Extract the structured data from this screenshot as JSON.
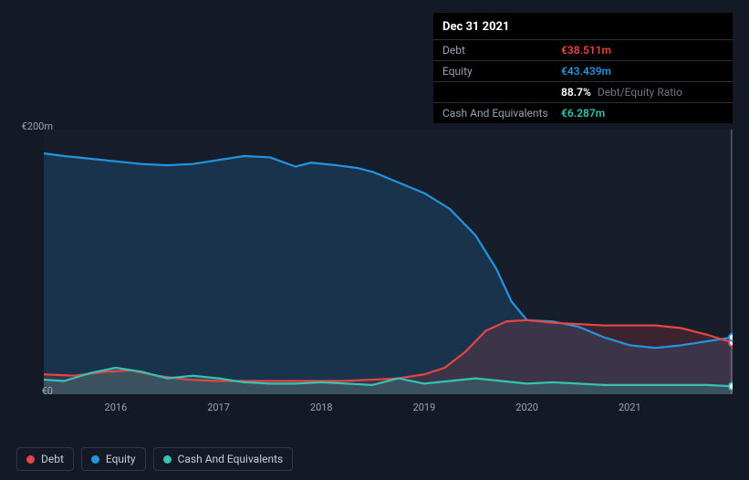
{
  "tooltip": {
    "date": "Dec 31 2021",
    "rows": [
      {
        "label": "Debt",
        "value": "€38.511m",
        "color": "#e64545"
      },
      {
        "label": "Equity",
        "value": "€43.439m",
        "color": "#2394df"
      },
      {
        "label": "",
        "value": "88.7%",
        "suffix": "Debt/Equity Ratio",
        "color": "#ffffff"
      },
      {
        "label": "Cash And Equivalents",
        "value": "€6.287m",
        "color": "#35c4b3"
      }
    ]
  },
  "chart": {
    "type": "area-line",
    "background": "#171e2b",
    "page_background": "#131a25",
    "ylim": [
      0,
      200
    ],
    "y_ticks": [
      {
        "v": 200,
        "label": "€200m"
      },
      {
        "v": 0,
        "label": "€0"
      }
    ],
    "x_range": [
      2015.3,
      2022.0
    ],
    "x_ticks": [
      2016,
      2017,
      2018,
      2019,
      2020,
      2021
    ],
    "hover_x": 2021.99,
    "series": {
      "equity": {
        "label": "Equity",
        "color": "#2394df",
        "fill": "rgba(35,148,223,0.18)",
        "line_width": 2.2,
        "points": [
          [
            2015.3,
            182
          ],
          [
            2015.5,
            180
          ],
          [
            2015.75,
            178
          ],
          [
            2016.0,
            176
          ],
          [
            2016.25,
            174
          ],
          [
            2016.5,
            173
          ],
          [
            2016.75,
            174
          ],
          [
            2017.0,
            177
          ],
          [
            2017.25,
            180
          ],
          [
            2017.5,
            179
          ],
          [
            2017.75,
            172
          ],
          [
            2017.9,
            175
          ],
          [
            2018.15,
            173
          ],
          [
            2018.35,
            171
          ],
          [
            2018.5,
            168
          ],
          [
            2018.75,
            160
          ],
          [
            2019.0,
            152
          ],
          [
            2019.25,
            140
          ],
          [
            2019.5,
            120
          ],
          [
            2019.7,
            95
          ],
          [
            2019.85,
            70
          ],
          [
            2020.0,
            56
          ],
          [
            2020.25,
            55
          ],
          [
            2020.5,
            51
          ],
          [
            2020.75,
            43
          ],
          [
            2021.0,
            37
          ],
          [
            2021.25,
            35
          ],
          [
            2021.5,
            37
          ],
          [
            2021.75,
            40
          ],
          [
            2022.0,
            43
          ]
        ]
      },
      "debt": {
        "label": "Debt",
        "color": "#e64545",
        "fill": "rgba(230,69,69,0.18)",
        "line_width": 2.2,
        "points": [
          [
            2015.3,
            15
          ],
          [
            2015.6,
            14
          ],
          [
            2015.9,
            17
          ],
          [
            2016.15,
            18
          ],
          [
            2016.4,
            14
          ],
          [
            2016.7,
            11
          ],
          [
            2017.0,
            10
          ],
          [
            2017.3,
            10
          ],
          [
            2017.6,
            10
          ],
          [
            2017.9,
            10
          ],
          [
            2018.2,
            10
          ],
          [
            2018.5,
            11
          ],
          [
            2018.75,
            12
          ],
          [
            2019.0,
            15
          ],
          [
            2019.2,
            20
          ],
          [
            2019.4,
            32
          ],
          [
            2019.6,
            48
          ],
          [
            2019.8,
            55
          ],
          [
            2020.0,
            56
          ],
          [
            2020.25,
            54
          ],
          [
            2020.5,
            53
          ],
          [
            2020.75,
            52
          ],
          [
            2021.0,
            52
          ],
          [
            2021.25,
            52
          ],
          [
            2021.5,
            50
          ],
          [
            2021.75,
            45
          ],
          [
            2022.0,
            39
          ]
        ]
      },
      "cash": {
        "label": "Cash And Equivalents",
        "color": "#35c4b3",
        "fill": "rgba(53,196,179,0.20)",
        "line_width": 2.2,
        "points": [
          [
            2015.3,
            11
          ],
          [
            2015.5,
            10
          ],
          [
            2015.75,
            16
          ],
          [
            2016.0,
            20
          ],
          [
            2016.25,
            17
          ],
          [
            2016.5,
            12
          ],
          [
            2016.75,
            14
          ],
          [
            2017.0,
            12
          ],
          [
            2017.25,
            9
          ],
          [
            2017.5,
            8
          ],
          [
            2017.75,
            8
          ],
          [
            2018.0,
            9
          ],
          [
            2018.25,
            8
          ],
          [
            2018.5,
            7
          ],
          [
            2018.75,
            12
          ],
          [
            2019.0,
            8
          ],
          [
            2019.25,
            10
          ],
          [
            2019.5,
            12
          ],
          [
            2019.75,
            10
          ],
          [
            2020.0,
            8
          ],
          [
            2020.25,
            9
          ],
          [
            2020.5,
            8
          ],
          [
            2020.75,
            7
          ],
          [
            2021.0,
            7
          ],
          [
            2021.25,
            7
          ],
          [
            2021.5,
            7
          ],
          [
            2021.75,
            7
          ],
          [
            2022.0,
            6
          ]
        ]
      }
    },
    "legend_order": [
      "debt",
      "equity",
      "cash"
    ],
    "marker_radius": 4
  }
}
